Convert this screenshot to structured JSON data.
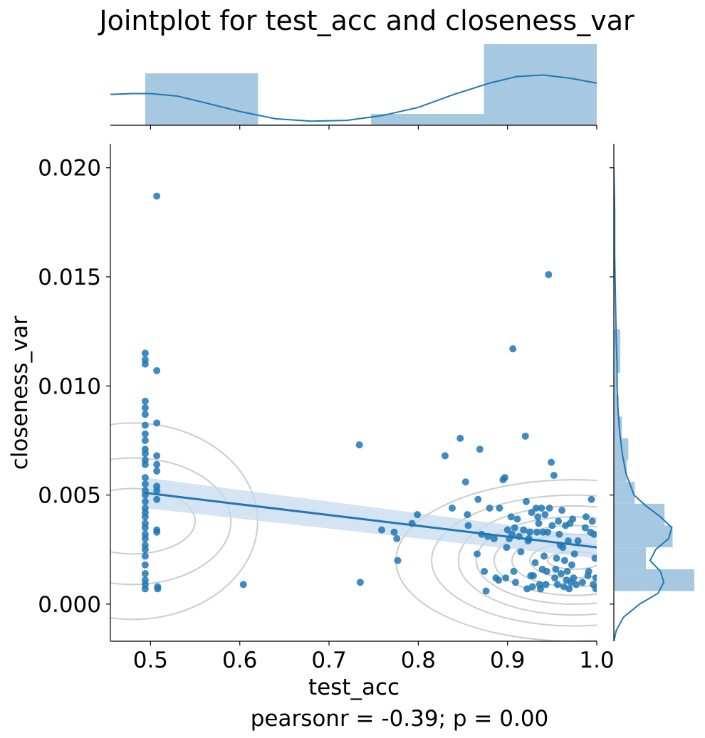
{
  "chart_data": {
    "type": "scatter",
    "title": "Jointplot for test_acc and closeness_var",
    "xlabel": "test_acc",
    "ylabel": "closeness_var",
    "annotation": "pearsonr = -0.39; p = 0.00",
    "xlim": [
      0.455,
      1.0
    ],
    "ylim": [
      -0.0017,
      0.0211
    ],
    "x_ticks": [
      "0.5",
      "0.6",
      "0.7",
      "0.8",
      "0.9",
      "1.0"
    ],
    "x_tick_values": [
      0.5,
      0.6,
      0.7,
      0.8,
      0.9,
      1.0
    ],
    "y_ticks": [
      "0.000",
      "0.005",
      "0.010",
      "0.015",
      "0.020"
    ],
    "y_tick_values": [
      0.0,
      0.005,
      0.01,
      0.015,
      0.02
    ],
    "colors": {
      "points": "#1f77b4",
      "regression": "#1f77b4",
      "ci_band": "#c6dbef",
      "histogram": "#a6c8e0",
      "kde": "#1f77b4",
      "contour": "#cccccc"
    },
    "grid": false,
    "points": [
      [
        0.494,
        0.0115
      ],
      [
        0.494,
        0.0112
      ],
      [
        0.494,
        0.011
      ],
      [
        0.494,
        0.0093
      ],
      [
        0.494,
        0.009
      ],
      [
        0.494,
        0.0087
      ],
      [
        0.494,
        0.0082
      ],
      [
        0.494,
        0.0078
      ],
      [
        0.494,
        0.0075
      ],
      [
        0.494,
        0.0071
      ],
      [
        0.494,
        0.0069
      ],
      [
        0.494,
        0.0066
      ],
      [
        0.494,
        0.0064
      ],
      [
        0.494,
        0.0058
      ],
      [
        0.494,
        0.0055
      ],
      [
        0.494,
        0.0052
      ],
      [
        0.494,
        0.005
      ],
      [
        0.494,
        0.0047
      ],
      [
        0.494,
        0.0044
      ],
      [
        0.494,
        0.0042
      ],
      [
        0.494,
        0.004
      ],
      [
        0.494,
        0.0037
      ],
      [
        0.494,
        0.0035
      ],
      [
        0.494,
        0.0032
      ],
      [
        0.494,
        0.003
      ],
      [
        0.494,
        0.0027
      ],
      [
        0.494,
        0.0025
      ],
      [
        0.494,
        0.0022
      ],
      [
        0.494,
        0.0018
      ],
      [
        0.494,
        0.0014
      ],
      [
        0.494,
        0.0011
      ],
      [
        0.494,
        0.0009
      ],
      [
        0.494,
        0.0007
      ],
      [
        0.507,
        0.0187
      ],
      [
        0.507,
        0.0107
      ],
      [
        0.507,
        0.0083
      ],
      [
        0.507,
        0.0068
      ],
      [
        0.507,
        0.0064
      ],
      [
        0.507,
        0.0061
      ],
      [
        0.507,
        0.0054
      ],
      [
        0.507,
        0.0052
      ],
      [
        0.507,
        0.0048
      ],
      [
        0.507,
        0.0034
      ],
      [
        0.507,
        0.0033
      ],
      [
        0.508,
        0.0008
      ],
      [
        0.508,
        0.0007
      ],
      [
        0.604,
        0.0009
      ],
      [
        0.734,
        0.0073
      ],
      [
        0.735,
        0.001
      ],
      [
        0.759,
        0.0034
      ],
      [
        0.773,
        0.0033
      ],
      [
        0.776,
        0.003
      ],
      [
        0.777,
        0.002
      ],
      [
        0.793,
        0.0037
      ],
      [
        0.799,
        0.0041
      ],
      [
        0.83,
        0.0068
      ],
      [
        0.838,
        0.0044
      ],
      [
        0.847,
        0.0076
      ],
      [
        0.853,
        0.0056
      ],
      [
        0.855,
        0.0041
      ],
      [
        0.856,
        0.0036
      ],
      [
        0.866,
        0.0023
      ],
      [
        0.867,
        0.0048
      ],
      [
        0.869,
        0.0071
      ],
      [
        0.871,
        0.0032
      ],
      [
        0.874,
        0.0015
      ],
      [
        0.876,
        0.0006
      ],
      [
        0.878,
        0.0031
      ],
      [
        0.88,
        0.0044
      ],
      [
        0.885,
        0.003
      ],
      [
        0.887,
        0.0012
      ],
      [
        0.89,
        0.0011
      ],
      [
        0.891,
        0.0044
      ],
      [
        0.895,
        0.0057
      ],
      [
        0.897,
        0.0058
      ],
      [
        0.898,
        0.0012
      ],
      [
        0.899,
        0.0026
      ],
      [
        0.9,
        0.0034
      ],
      [
        0.902,
        0.003
      ],
      [
        0.904,
        0.004
      ],
      [
        0.905,
        0.0032
      ],
      [
        0.906,
        0.0117
      ],
      [
        0.907,
        0.0015
      ],
      [
        0.908,
        0.0035
      ],
      [
        0.909,
        0.001
      ],
      [
        0.911,
        0.0039
      ],
      [
        0.913,
        0.0031
      ],
      [
        0.915,
        0.0024
      ],
      [
        0.918,
        0.0034
      ],
      [
        0.92,
        0.0077
      ],
      [
        0.921,
        0.0047
      ],
      [
        0.922,
        0.0007
      ],
      [
        0.923,
        0.0029
      ],
      [
        0.924,
        0.003
      ],
      [
        0.925,
        0.0033
      ],
      [
        0.926,
        0.0013
      ],
      [
        0.927,
        0.0042
      ],
      [
        0.928,
        0.0008
      ],
      [
        0.929,
        0.0013
      ],
      [
        0.931,
        0.0019
      ],
      [
        0.932,
        0.0044
      ],
      [
        0.933,
        0.0033
      ],
      [
        0.934,
        0.004
      ],
      [
        0.935,
        0.0037
      ],
      [
        0.936,
        0.0009
      ],
      [
        0.937,
        0.0007
      ],
      [
        0.938,
        0.0044
      ],
      [
        0.939,
        0.0016
      ],
      [
        0.94,
        0.0033
      ],
      [
        0.941,
        0.0022
      ],
      [
        0.942,
        0.0041
      ],
      [
        0.943,
        0.0009
      ],
      [
        0.944,
        0.0015
      ],
      [
        0.945,
        0.0033
      ],
      [
        0.946,
        0.0151
      ],
      [
        0.947,
        0.0044
      ],
      [
        0.949,
        0.0065
      ],
      [
        0.95,
        0.0036
      ],
      [
        0.952,
        0.0059
      ],
      [
        0.953,
        0.0012
      ],
      [
        0.954,
        0.0016
      ],
      [
        0.955,
        0.0021
      ],
      [
        0.956,
        0.0009
      ],
      [
        0.957,
        0.0038
      ],
      [
        0.958,
        0.0032
      ],
      [
        0.959,
        0.0027
      ],
      [
        0.96,
        0.0014
      ],
      [
        0.961,
        0.0043
      ],
      [
        0.962,
        0.0026
      ],
      [
        0.963,
        0.0008
      ],
      [
        0.964,
        0.002
      ],
      [
        0.965,
        0.0036
      ],
      [
        0.966,
        0.0011
      ],
      [
        0.967,
        0.0015
      ],
      [
        0.968,
        0.0029
      ],
      [
        0.969,
        0.0007
      ],
      [
        0.97,
        0.0037
      ],
      [
        0.971,
        0.001
      ],
      [
        0.972,
        0.0018
      ],
      [
        0.973,
        0.0039
      ],
      [
        0.974,
        0.0012
      ],
      [
        0.975,
        0.0023
      ],
      [
        0.977,
        0.0009
      ],
      [
        0.979,
        0.0029
      ],
      [
        0.984,
        0.001
      ],
      [
        0.987,
        0.0035
      ],
      [
        0.988,
        0.004
      ],
      [
        0.99,
        0.0013
      ],
      [
        0.991,
        0.0015
      ],
      [
        0.993,
        0.0033
      ],
      [
        0.994,
        0.0048
      ],
      [
        0.995,
        0.0038
      ],
      [
        0.996,
        0.0009
      ],
      [
        0.997,
        0.0032
      ],
      [
        0.998,
        0.0021
      ],
      [
        0.999,
        0.0007
      ],
      [
        0.999,
        0.0012
      ]
    ],
    "regression": {
      "x0": 0.494,
      "y0": 0.0051,
      "x1": 1.0,
      "y1": 0.0026,
      "ci0": 0.0007,
      "ci1": 0.0005
    },
    "hist_x": {
      "edges": [
        0.494,
        0.6205,
        0.747,
        0.8735,
        1.0
      ],
      "heights": [
        0.64,
        0.01,
        0.14,
        1.0
      ]
    },
    "hist_y": {
      "edges": [
        0.0006,
        0.0016,
        0.0026,
        0.0036,
        0.0046,
        0.0056,
        0.0066,
        0.0076,
        0.0086,
        0.0096,
        0.0106,
        0.0116,
        0.0126
      ],
      "heights": [
        1.0,
        0.4,
        0.73,
        0.63,
        0.26,
        0.16,
        0.18,
        0.1,
        0.06,
        0.03,
        0.08,
        0.08
      ]
    },
    "kde_x": [
      [
        0.455,
        0.38
      ],
      [
        0.48,
        0.39
      ],
      [
        0.5,
        0.39
      ],
      [
        0.53,
        0.36
      ],
      [
        0.56,
        0.28
      ],
      [
        0.6,
        0.17
      ],
      [
        0.64,
        0.08
      ],
      [
        0.68,
        0.05
      ],
      [
        0.72,
        0.06
      ],
      [
        0.76,
        0.12
      ],
      [
        0.8,
        0.22
      ],
      [
        0.84,
        0.38
      ],
      [
        0.88,
        0.52
      ],
      [
        0.91,
        0.6
      ],
      [
        0.94,
        0.62
      ],
      [
        0.97,
        0.58
      ],
      [
        1.0,
        0.52
      ]
    ],
    "kde_y": [
      [
        -0.0017,
        0.0
      ],
      [
        -0.0012,
        0.03
      ],
      [
        -0.0006,
        0.12
      ],
      [
        0.0,
        0.32
      ],
      [
        0.0005,
        0.55
      ],
      [
        0.001,
        0.62
      ],
      [
        0.0015,
        0.58
      ],
      [
        0.002,
        0.45
      ],
      [
        0.0025,
        0.52
      ],
      [
        0.003,
        0.68
      ],
      [
        0.0035,
        0.72
      ],
      [
        0.004,
        0.58
      ],
      [
        0.0045,
        0.4
      ],
      [
        0.005,
        0.25
      ],
      [
        0.006,
        0.15
      ],
      [
        0.007,
        0.1
      ],
      [
        0.008,
        0.07
      ],
      [
        0.009,
        0.05
      ],
      [
        0.01,
        0.04
      ],
      [
        0.011,
        0.04
      ],
      [
        0.012,
        0.03
      ],
      [
        0.014,
        0.02
      ],
      [
        0.016,
        0.01
      ],
      [
        0.018,
        0.01
      ],
      [
        0.02,
        0.0
      ]
    ],
    "contours_left": {
      "center": [
        0.48,
        0.0038
      ],
      "radii": [
        [
          0.07,
          0.0015
        ],
        [
          0.11,
          0.0029
        ],
        [
          0.14,
          0.0045
        ]
      ]
    },
    "contours_right": {
      "center": [
        0.975,
        0.002
      ],
      "radii": [
        [
          0.03,
          0.0004
        ],
        [
          0.05,
          0.0008
        ],
        [
          0.07,
          0.0012
        ],
        [
          0.09,
          0.0016
        ],
        [
          0.11,
          0.002
        ],
        [
          0.13,
          0.0025
        ],
        [
          0.16,
          0.003
        ],
        [
          0.2,
          0.0037
        ]
      ]
    }
  }
}
